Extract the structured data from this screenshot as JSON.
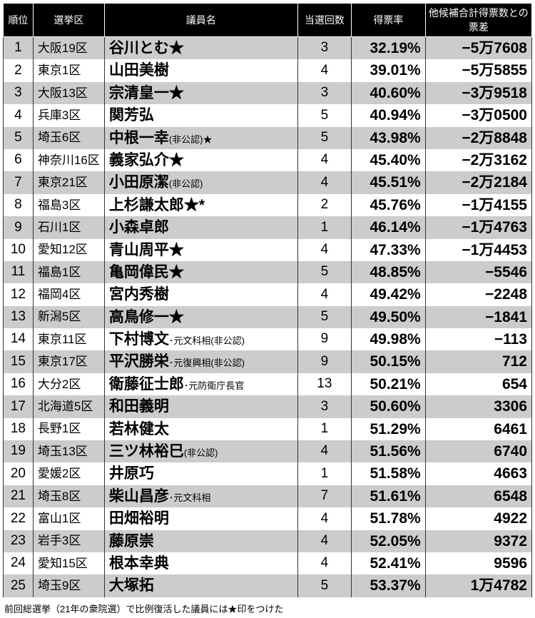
{
  "headers": {
    "rank": "順位",
    "district": "選挙区",
    "name": "議員名",
    "wins": "当選回数",
    "pct": "得票率",
    "diff": "他候補合計得票数との票差"
  },
  "rows": [
    {
      "rank": "1",
      "district": "大阪19区",
      "name": "谷川とむ★",
      "note": "",
      "wins": "3",
      "pct": "32.19%",
      "diff": "−5万7608"
    },
    {
      "rank": "2",
      "district": "東京1区",
      "name": "山田美樹",
      "note": "",
      "wins": "4",
      "pct": "39.01%",
      "diff": "−5万5855"
    },
    {
      "rank": "3",
      "district": "大阪13区",
      "name": "宗清皇一★",
      "note": "",
      "wins": "3",
      "pct": "40.60%",
      "diff": "−3万9518"
    },
    {
      "rank": "4",
      "district": "兵庫3区",
      "name": "関芳弘",
      "note": "",
      "wins": "5",
      "pct": "40.94%",
      "diff": "−3万0500"
    },
    {
      "rank": "5",
      "district": "埼玉6区",
      "name": "中根一幸",
      "note": "(非公認)★",
      "wins": "5",
      "pct": "43.98%",
      "diff": "−2万8848"
    },
    {
      "rank": "6",
      "district": "神奈川16区",
      "name": "義家弘介★",
      "note": "",
      "wins": "4",
      "pct": "45.40%",
      "diff": "−2万3162"
    },
    {
      "rank": "7",
      "district": "東京21区",
      "name": "小田原潔",
      "note": "(非公認)",
      "wins": "4",
      "pct": "45.51%",
      "diff": "−2万2184"
    },
    {
      "rank": "8",
      "district": "福島3区",
      "name": "上杉謙太郎★*",
      "note": "",
      "wins": "2",
      "pct": "45.76%",
      "diff": "−1万4155"
    },
    {
      "rank": "9",
      "district": "石川1区",
      "name": "小森卓郎",
      "note": "",
      "wins": "1",
      "pct": "46.14%",
      "diff": "−1万4763"
    },
    {
      "rank": "10",
      "district": "愛知12区",
      "name": "青山周平★",
      "note": "",
      "wins": "4",
      "pct": "47.33%",
      "diff": "−1万4453"
    },
    {
      "rank": "11",
      "district": "福島1区",
      "name": "亀岡偉民★",
      "note": "",
      "wins": "5",
      "pct": "48.85%",
      "diff": "−5546"
    },
    {
      "rank": "12",
      "district": "福岡4区",
      "name": "宮内秀樹",
      "note": "",
      "wins": "4",
      "pct": "49.42%",
      "diff": "−2248"
    },
    {
      "rank": "13",
      "district": "新潟5区",
      "name": "高鳥修一★",
      "note": "",
      "wins": "5",
      "pct": "49.50%",
      "diff": "−1841"
    },
    {
      "rank": "14",
      "district": "東京11区",
      "name": "下村博文",
      "note": "･元文科相(非公認)",
      "wins": "9",
      "pct": "49.98%",
      "diff": "−113"
    },
    {
      "rank": "15",
      "district": "東京17区",
      "name": "平沢勝栄",
      "note": "･元復興相(非公認)",
      "wins": "9",
      "pct": "50.15%",
      "diff": "712"
    },
    {
      "rank": "16",
      "district": "大分2区",
      "name": "衛藤征士郎",
      "note": "･元防衛庁長官",
      "wins": "13",
      "pct": "50.21%",
      "diff": "654"
    },
    {
      "rank": "17",
      "district": "北海道5区",
      "name": "和田義明",
      "note": "",
      "wins": "3",
      "pct": "50.60%",
      "diff": "3306"
    },
    {
      "rank": "18",
      "district": "長野1区",
      "name": "若林健太",
      "note": "",
      "wins": "1",
      "pct": "51.29%",
      "diff": "6461"
    },
    {
      "rank": "19",
      "district": "埼玉13区",
      "name": "三ツ林裕巳",
      "note": "(非公認)",
      "wins": "4",
      "pct": "51.56%",
      "diff": "6740"
    },
    {
      "rank": "20",
      "district": "愛媛2区",
      "name": "井原巧",
      "note": "",
      "wins": "1",
      "pct": "51.58%",
      "diff": "4663"
    },
    {
      "rank": "21",
      "district": "埼玉8区",
      "name": "柴山昌彦",
      "note": "･元文科相",
      "wins": "7",
      "pct": "51.61%",
      "diff": "6548"
    },
    {
      "rank": "22",
      "district": "富山1区",
      "name": "田畑裕明",
      "note": "",
      "wins": "4",
      "pct": "51.78%",
      "diff": "4922"
    },
    {
      "rank": "23",
      "district": "岩手3区",
      "name": "藤原崇",
      "note": "",
      "wins": "4",
      "pct": "52.05%",
      "diff": "9372"
    },
    {
      "rank": "24",
      "district": "愛知15区",
      "name": "根本幸典",
      "note": "",
      "wins": "4",
      "pct": "52.41%",
      "diff": "9596"
    },
    {
      "rank": "25",
      "district": "埼玉9区",
      "name": "大塚拓",
      "note": "",
      "wins": "5",
      "pct": "53.37%",
      "diff": "1万4782"
    }
  ],
  "footnote": "前回総選挙（21年の衆院選）で比例復活した議員には★印をつけた"
}
